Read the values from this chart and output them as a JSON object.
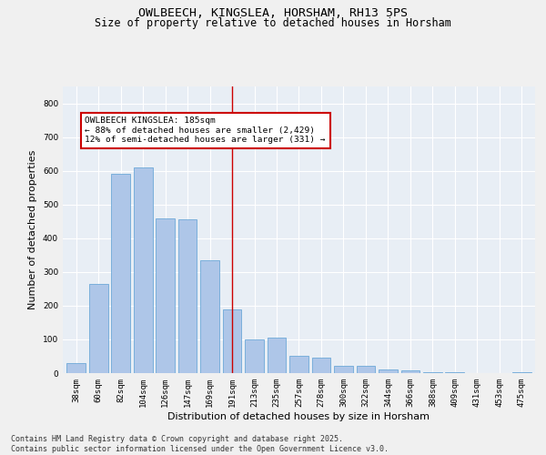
{
  "title_line1": "OWLBEECH, KINGSLEA, HORSHAM, RH13 5PS",
  "title_line2": "Size of property relative to detached houses in Horsham",
  "xlabel": "Distribution of detached houses by size in Horsham",
  "ylabel": "Number of detached properties",
  "categories": [
    "38sqm",
    "60sqm",
    "82sqm",
    "104sqm",
    "126sqm",
    "147sqm",
    "169sqm",
    "191sqm",
    "213sqm",
    "235sqm",
    "257sqm",
    "278sqm",
    "300sqm",
    "322sqm",
    "344sqm",
    "366sqm",
    "388sqm",
    "409sqm",
    "431sqm",
    "453sqm",
    "475sqm"
  ],
  "values": [
    30,
    265,
    590,
    610,
    460,
    455,
    335,
    190,
    100,
    105,
    50,
    45,
    22,
    22,
    10,
    8,
    3,
    2,
    1,
    1,
    2
  ],
  "bar_color": "#aec6e8",
  "bar_edge_color": "#5a9fd4",
  "vline_x_index": 7,
  "vline_color": "#cc0000",
  "property_label": "OWLBEECH KINGSLEA: 185sqm",
  "annotation_line2": "← 88% of detached houses are smaller (2,429)",
  "annotation_line3": "12% of semi-detached houses are larger (331) →",
  "annotation_box_color": "#ffffff",
  "annotation_box_edge": "#cc0000",
  "ylim": [
    0,
    850
  ],
  "yticks": [
    0,
    100,
    200,
    300,
    400,
    500,
    600,
    700,
    800
  ],
  "background_color": "#e8eef5",
  "grid_color": "#ffffff",
  "footer_line1": "Contains HM Land Registry data © Crown copyright and database right 2025.",
  "footer_line2": "Contains public sector information licensed under the Open Government Licence v3.0.",
  "title_fontsize": 9.5,
  "subtitle_fontsize": 8.5,
  "axis_fontsize": 8,
  "tick_fontsize": 6.5,
  "annotation_fontsize": 6.8,
  "footer_fontsize": 6
}
